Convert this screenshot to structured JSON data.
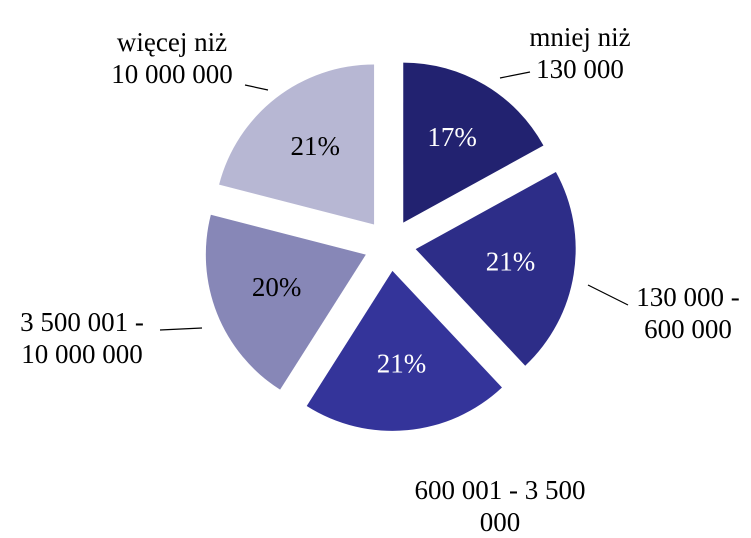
{
  "chart_data": {
    "type": "pie",
    "categories": [
      [
        "mniej niż",
        "130 000"
      ],
      [
        "130 000 -",
        "600 000"
      ],
      [
        "600 001 - 3 500",
        "000"
      ],
      [
        "3 500 001 -",
        "10 000 000"
      ],
      [
        "więcej niż",
        "10 000 000"
      ]
    ],
    "values": [
      17,
      21,
      21,
      20,
      21
    ],
    "value_labels": [
      "17%",
      "21%",
      "21%",
      "20%",
      "21%"
    ],
    "colors": [
      "#222270",
      "#2d2d88",
      "#34349a",
      "#8787b7",
      "#b7b7d3"
    ]
  }
}
